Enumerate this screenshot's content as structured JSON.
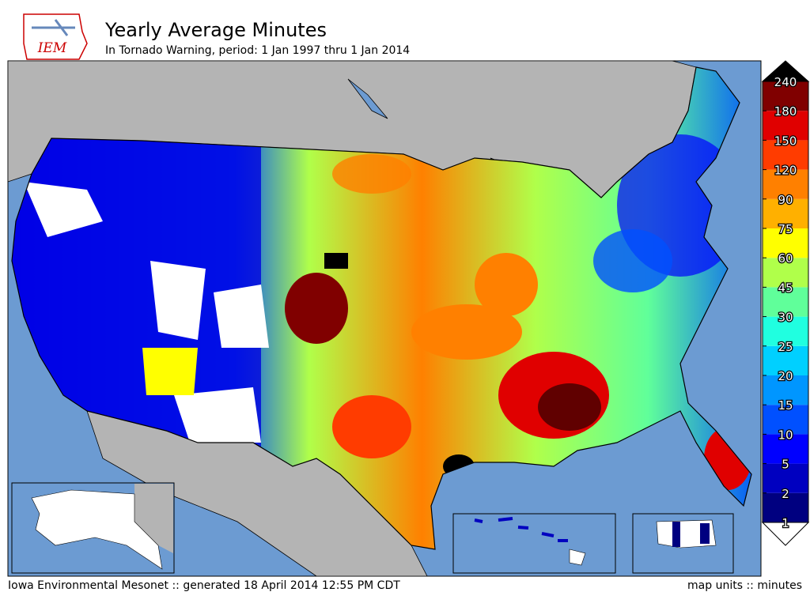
{
  "header": {
    "logo": "IEM",
    "title": "Yearly Average Minutes",
    "subtitle": "In Tornado Warning, period: 1 Jan 1997 thru 1 Jan 2014"
  },
  "legend": {
    "ticks": [
      1,
      2,
      5,
      10,
      15,
      20,
      25,
      30,
      45,
      60,
      75,
      90,
      120,
      150,
      180,
      240
    ],
    "colors": [
      "#000080",
      "#0000c0",
      "#0000ff",
      "#0050ff",
      "#0096ff",
      "#00d0ff",
      "#20ffe0",
      "#60ff9a",
      "#b0ff4a",
      "#ffff00",
      "#ffb000",
      "#ff8000",
      "#ff3c00",
      "#e00000",
      "#800000"
    ],
    "over_color": "#000000",
    "under_color": "#ffffff"
  },
  "footer": {
    "source": "Iowa Environmental Mesonet :: generated 18 April 2014 12:55 PM CDT",
    "units": "map units :: minutes"
  }
}
